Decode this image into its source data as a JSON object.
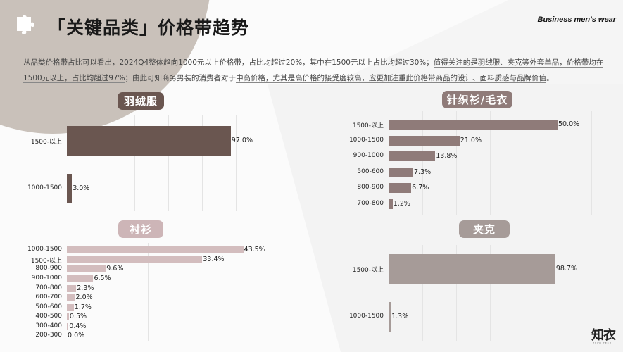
{
  "header": {
    "title": "「关键品类」价格带趋势",
    "brand": "Business men's wear",
    "icon": "puzzle-icon"
  },
  "description": {
    "part1": "从品类价格带占比可以看出，2024Q4整体趋向1000元以上价格带，占比均超过20%，其中在1500元以上占比均超过30%；",
    "part2_underlined": "值得关注的是羽绒服、夹克等外套单品，价格带均在1500元以上，占比均超过97%",
    "part3": "；由此可知商务男装的消费者对于",
    "part4_underlined": "中高价格，尤其是高价格的接受度较高，应更加注重此价格带商品的设计、面料质感与品牌价值",
    "part5": "。"
  },
  "logo": {
    "text": "知衣",
    "sub": "ZHIYI TECH"
  },
  "colors": {
    "down": "#6a5650",
    "knit": "#8f7b79",
    "shirt": "#d3bdbe",
    "jacket": "#a69b98",
    "pill_shirt": "#cdb5b7"
  },
  "chart_data": [
    {
      "type": "bar",
      "orientation": "horizontal",
      "title": "羽绒服",
      "categories": [
        "1500-以上",
        "1000-1500"
      ],
      "values": [
        97.0,
        3.0
      ],
      "labels": [
        "97.0%",
        "3.0%"
      ],
      "xlim": [
        0,
        100
      ],
      "grid": true
    },
    {
      "type": "bar",
      "orientation": "horizontal",
      "title": "针织衫/毛衣",
      "categories": [
        "1500-以上",
        "1000-1500",
        "900-1000",
        "500-600",
        "800-900",
        "700-800"
      ],
      "values": [
        50.0,
        21.0,
        13.8,
        7.3,
        6.7,
        1.2
      ],
      "labels": [
        "50.0%",
        "21.0%",
        "13.8%",
        "7.3%",
        "6.7%",
        "1.2%"
      ],
      "xlim": [
        0,
        60
      ],
      "grid": true
    },
    {
      "type": "bar",
      "orientation": "horizontal",
      "title": "衬衫",
      "categories": [
        "1000-1500",
        "1500-以上",
        "800-900",
        "900-1000",
        "700-800",
        "600-700",
        "500-600",
        "400-500",
        "300-400",
        "200-300"
      ],
      "values": [
        43.5,
        33.4,
        9.6,
        6.5,
        2.3,
        2.0,
        1.7,
        0.5,
        0.4,
        0.0
      ],
      "labels": [
        "43.5%",
        "33.4%",
        "9.6%",
        "6.5%",
        "2.3%",
        "2.0%",
        "1.7%",
        "0.5%",
        "0.4%",
        "0.0%"
      ],
      "xlim": [
        0,
        50
      ],
      "grid": true
    },
    {
      "type": "bar",
      "orientation": "horizontal",
      "title": "夹克",
      "categories": [
        "1500-以上",
        "1000-1500"
      ],
      "values": [
        98.7,
        1.3
      ],
      "labels": [
        "98.7%",
        "1.3%"
      ],
      "xlim": [
        0,
        100
      ],
      "grid": true
    }
  ]
}
